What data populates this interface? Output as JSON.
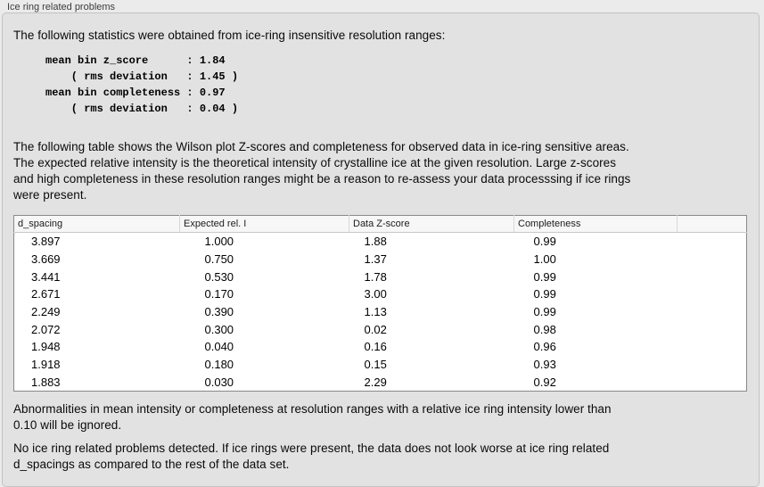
{
  "panel": {
    "title": "Ice ring related problems"
  },
  "intro": "The following statistics were obtained from ice-ring insensitive resolution ranges:",
  "stats_block": "mean bin z_score      : 1.84\n    ( rms deviation   : 1.45 )\nmean bin completeness : 0.97\n    ( rms deviation   : 0.04 )",
  "table_intro": "The following table shows the Wilson plot Z-scores and completeness for observed data in ice-ring sensitive areas.\nThe expected relative intensity is the theoretical intensity of crystalline ice at the given resolution. Large z-scores\nand high completeness in these resolution ranges might be a reason to re-assess your data processsing if ice rings\nwere present.",
  "table": {
    "columns": [
      "d_spacing",
      "Expected rel. I",
      "Data Z-score",
      "Completeness",
      ""
    ],
    "rows": [
      [
        "3.897",
        "1.000",
        "1.88",
        "0.99"
      ],
      [
        "3.669",
        "0.750",
        "1.37",
        "1.00"
      ],
      [
        "3.441",
        "0.530",
        "1.78",
        "0.99"
      ],
      [
        "2.671",
        "0.170",
        "3.00",
        "0.99"
      ],
      [
        "2.249",
        "0.390",
        "1.13",
        "0.99"
      ],
      [
        "2.072",
        "0.300",
        "0.02",
        "0.98"
      ],
      [
        "1.948",
        "0.040",
        "0.16",
        "0.96"
      ],
      [
        "1.918",
        "0.180",
        "0.15",
        "0.93"
      ],
      [
        "1.883",
        "0.030",
        "2.29",
        "0.92"
      ]
    ]
  },
  "note_ignore": "Abnormalities in mean intensity or completeness at resolution ranges with a relative ice ring intensity lower than\n0.10 will be ignored.",
  "conclusion": "No ice ring related problems detected. If ice rings were present, the data does not look worse at ice ring related\nd_spacings as compared to the rest of the data set."
}
